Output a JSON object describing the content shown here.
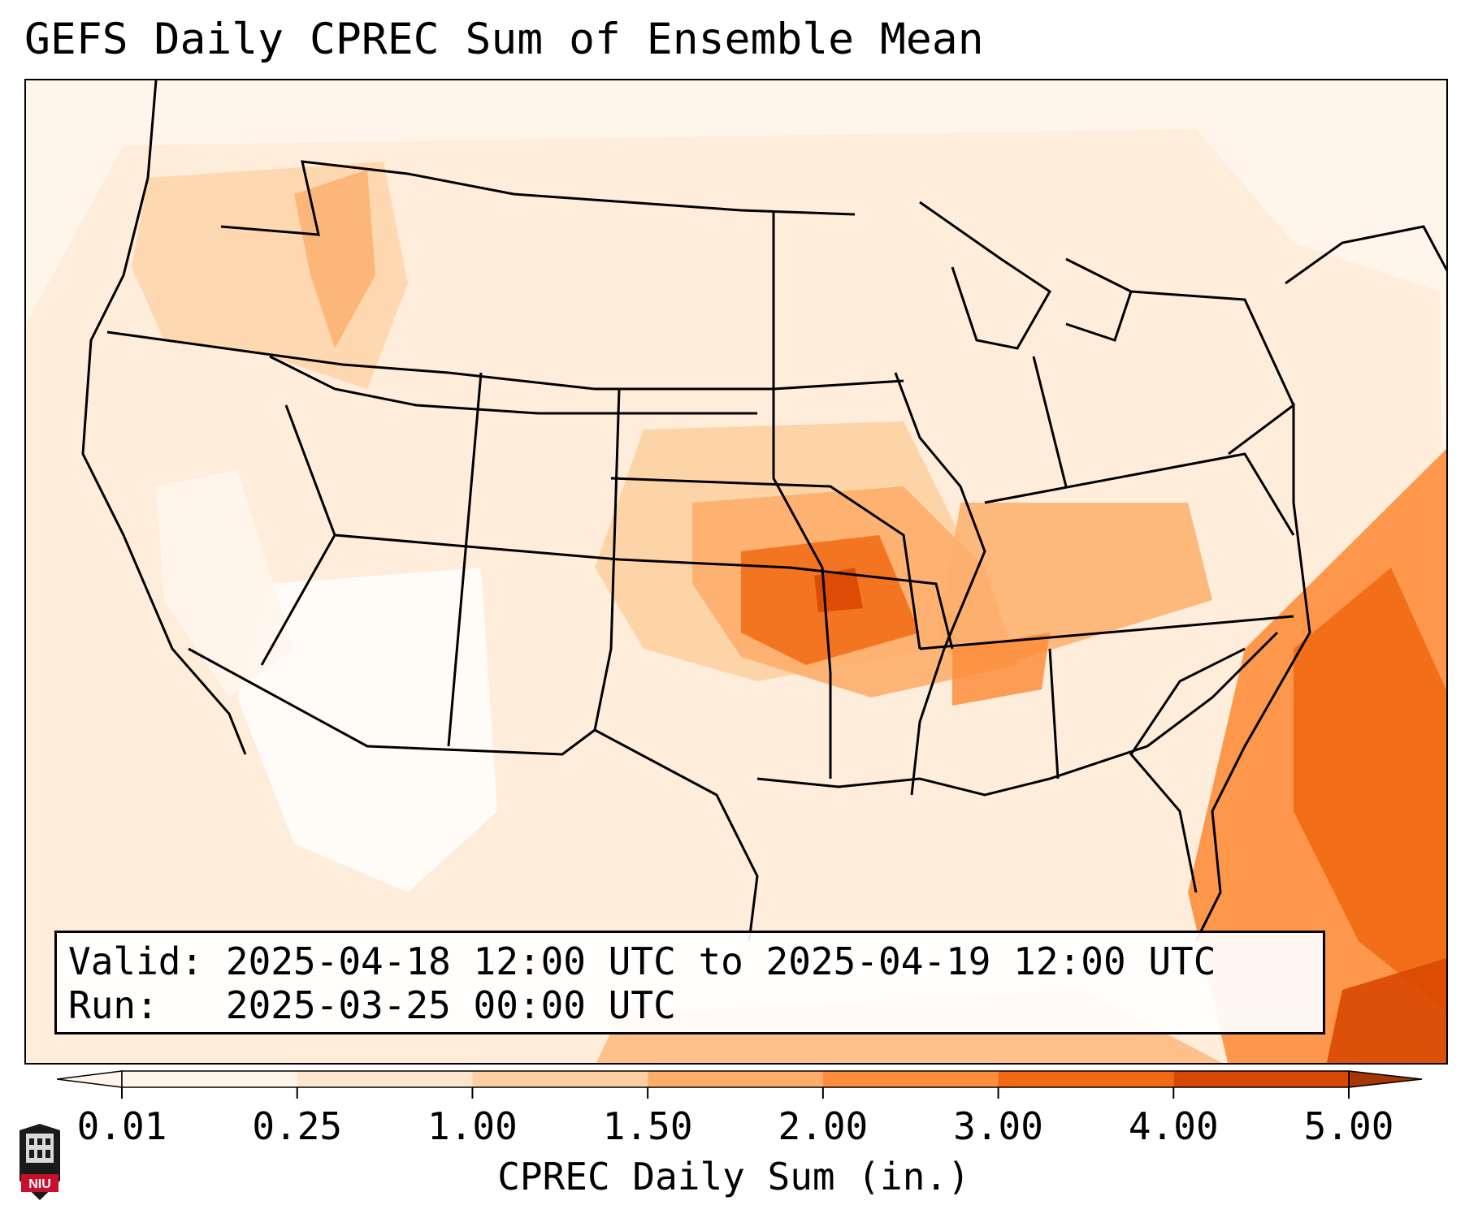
{
  "title": "GEFS Daily CPREC Sum of Ensemble Mean",
  "info": {
    "valid_label": "Valid:",
    "valid_value": "2025-04-18 12:00 UTC to 2025-04-19 12:00 UTC",
    "run_label": "Run:",
    "run_value": "2025-03-25 00:00 UTC"
  },
  "colorbar": {
    "label": "CPREC Daily Sum (in.)",
    "ticks": [
      "0.01",
      "0.25",
      "1.00",
      "1.50",
      "2.00",
      "3.00",
      "4.00",
      "5.00"
    ],
    "colors": [
      "#fff5eb",
      "#fee6ce",
      "#fdd0a2",
      "#fdae6b",
      "#fd8d3c",
      "#f16913",
      "#d94801",
      "#a63603"
    ],
    "extend": "both"
  },
  "precip_regions": [
    {
      "region": "Missouri / Kansas / Oklahoma",
      "level": "2.00-3.00"
    },
    {
      "region": "Ohio Valley / Tennessee",
      "level": "1.50-2.00"
    },
    {
      "region": "Western Atlantic offshore",
      "level": "2.00-4.00"
    },
    {
      "region": "Pacific Northwest",
      "level": "1.00-1.50"
    },
    {
      "region": "Desert Southwest",
      "level": "0.01-0.25"
    }
  ],
  "logo": {
    "text": "NIU",
    "name": "niu-logo"
  }
}
